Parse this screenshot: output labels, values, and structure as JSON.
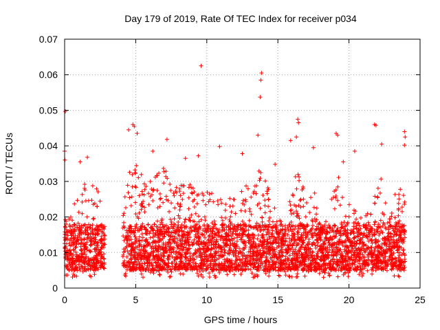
{
  "chart_data": {
    "type": "scatter",
    "title": "Day 179 of 2019, Rate Of TEC Index for receiver p034",
    "xlabel": "GPS time / hours",
    "ylabel": "ROTI / TECUs",
    "xlim": [
      0,
      25
    ],
    "ylim": [
      0,
      0.07
    ],
    "xticks": [
      "0",
      "5",
      "10",
      "15",
      "20",
      "25"
    ],
    "yticks": [
      "0",
      "0.01",
      "0.02",
      "0.03",
      "0.04",
      "0.05",
      "0.06",
      "0.07"
    ],
    "grid": true,
    "marker": "+",
    "color": "#ff0000",
    "data_gaps_hours": [
      [
        2.85,
        4.1
      ]
    ],
    "bulk_range": [
      0.003,
      0.02
    ],
    "envelope": [
      {
        "x": 0.0,
        "y": 0.02
      },
      {
        "x": 0.5,
        "y": 0.023
      },
      {
        "x": 1.0,
        "y": 0.026
      },
      {
        "x": 1.5,
        "y": 0.033
      },
      {
        "x": 2.0,
        "y": 0.031
      },
      {
        "x": 2.5,
        "y": 0.026
      },
      {
        "x": 2.8,
        "y": 0.021
      },
      {
        "x": 4.1,
        "y": 0.025
      },
      {
        "x": 4.6,
        "y": 0.034
      },
      {
        "x": 5.0,
        "y": 0.037
      },
      {
        "x": 5.5,
        "y": 0.031
      },
      {
        "x": 6.0,
        "y": 0.03
      },
      {
        "x": 7.0,
        "y": 0.034
      },
      {
        "x": 8.0,
        "y": 0.03
      },
      {
        "x": 9.0,
        "y": 0.029
      },
      {
        "x": 10.0,
        "y": 0.028
      },
      {
        "x": 11.0,
        "y": 0.025
      },
      {
        "x": 12.0,
        "y": 0.026
      },
      {
        "x": 13.0,
        "y": 0.031
      },
      {
        "x": 13.8,
        "y": 0.034
      },
      {
        "x": 14.5,
        "y": 0.026
      },
      {
        "x": 15.0,
        "y": 0.02
      },
      {
        "x": 15.5,
        "y": 0.017
      },
      {
        "x": 16.0,
        "y": 0.03
      },
      {
        "x": 16.5,
        "y": 0.034
      },
      {
        "x": 17.0,
        "y": 0.026
      },
      {
        "x": 17.5,
        "y": 0.029
      },
      {
        "x": 18.0,
        "y": 0.018
      },
      {
        "x": 18.5,
        "y": 0.02
      },
      {
        "x": 19.2,
        "y": 0.033
      },
      {
        "x": 19.8,
        "y": 0.024
      },
      {
        "x": 20.5,
        "y": 0.024
      },
      {
        "x": 21.0,
        "y": 0.02
      },
      {
        "x": 21.5,
        "y": 0.022
      },
      {
        "x": 22.2,
        "y": 0.032
      },
      {
        "x": 22.8,
        "y": 0.021
      },
      {
        "x": 23.3,
        "y": 0.028
      },
      {
        "x": 23.9,
        "y": 0.03
      }
    ],
    "outliers": [
      {
        "x": 0.05,
        "y": 0.0497
      },
      {
        "x": 0.0,
        "y": 0.0385
      },
      {
        "x": 0.02,
        "y": 0.036
      },
      {
        "x": 9.6,
        "y": 0.0625
      },
      {
        "x": 13.85,
        "y": 0.0605
      },
      {
        "x": 13.8,
        "y": 0.0585
      },
      {
        "x": 13.75,
        "y": 0.0537
      },
      {
        "x": 4.5,
        "y": 0.0445
      },
      {
        "x": 4.8,
        "y": 0.046
      },
      {
        "x": 4.9,
        "y": 0.0455
      },
      {
        "x": 5.1,
        "y": 0.0435
      },
      {
        "x": 16.4,
        "y": 0.0475
      },
      {
        "x": 16.45,
        "y": 0.0465
      },
      {
        "x": 16.3,
        "y": 0.0425
      },
      {
        "x": 19.1,
        "y": 0.0435
      },
      {
        "x": 19.2,
        "y": 0.043
      },
      {
        "x": 21.8,
        "y": 0.046
      },
      {
        "x": 21.9,
        "y": 0.0458
      },
      {
        "x": 23.9,
        "y": 0.044
      },
      {
        "x": 23.95,
        "y": 0.0425
      },
      {
        "x": 23.9,
        "y": 0.0402
      },
      {
        "x": 10.9,
        "y": 0.0398
      },
      {
        "x": 7.2,
        "y": 0.0418
      },
      {
        "x": 13.6,
        "y": 0.043
      },
      {
        "x": 15.9,
        "y": 0.0415
      },
      {
        "x": 17.5,
        "y": 0.0395
      },
      {
        "x": 20.4,
        "y": 0.0385
      },
      {
        "x": 22.3,
        "y": 0.0405
      },
      {
        "x": 1.1,
        "y": 0.0355
      },
      {
        "x": 1.6,
        "y": 0.0368
      },
      {
        "x": 9.4,
        "y": 0.0372
      },
      {
        "x": 12.5,
        "y": 0.0378
      },
      {
        "x": 14.8,
        "y": 0.0348
      },
      {
        "x": 6.2,
        "y": 0.0385
      },
      {
        "x": 8.5,
        "y": 0.0365
      },
      {
        "x": 19.6,
        "y": 0.0355
      }
    ]
  }
}
